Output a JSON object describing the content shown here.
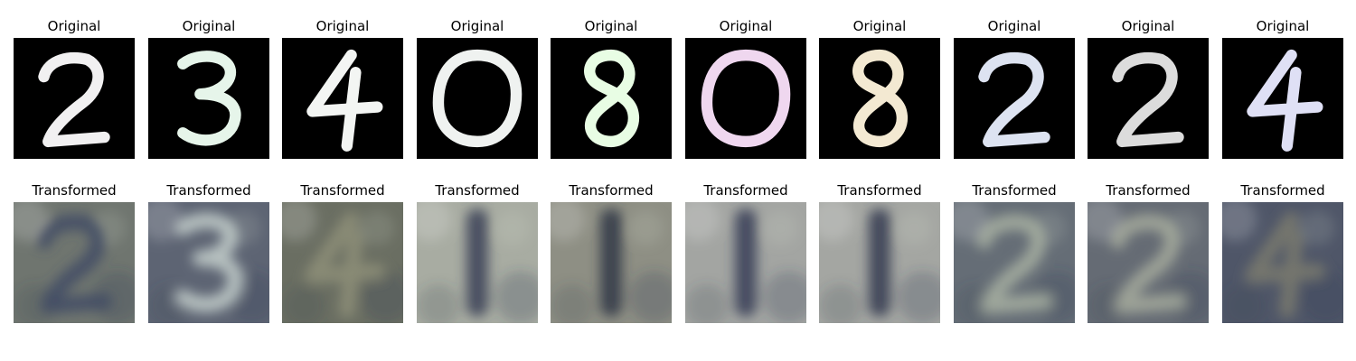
{
  "rows": [
    {
      "kind": "original",
      "items": [
        {
          "title": "Original",
          "digit": "2",
          "color": "#f1f0f1"
        },
        {
          "title": "Original",
          "digit": "3",
          "color": "#e6f5ea"
        },
        {
          "title": "Original",
          "digit": "4",
          "color": "#f3f5f3"
        },
        {
          "title": "Original",
          "digit": "0",
          "color": "#eff2f0"
        },
        {
          "title": "Original",
          "digit": "8",
          "color": "#e8fde4"
        },
        {
          "title": "Original",
          "digit": "0",
          "color": "#efd7ef"
        },
        {
          "title": "Original",
          "digit": "8",
          "color": "#f3e9d2"
        },
        {
          "title": "Original",
          "digit": "2",
          "color": "#dde3f1"
        },
        {
          "title": "Original",
          "digit": "2",
          "color": "#dcdcdc"
        },
        {
          "title": "Original",
          "digit": "4",
          "color": "#dfe0f5"
        }
      ]
    },
    {
      "kind": "transformed",
      "items": [
        {
          "title": "Transformed",
          "digit": "2",
          "bg": "#6f756f",
          "fg": "#3f4a64"
        },
        {
          "title": "Transformed",
          "digit": "3",
          "bg": "#5d6473",
          "fg": "#c6d0cc"
        },
        {
          "title": "Transformed",
          "digit": "4",
          "bg": "#6a6e62",
          "fg": "#8e8f78"
        },
        {
          "title": "Transformed",
          "digit": "1",
          "bg": "#a8aca2",
          "fg": "#3a4156"
        },
        {
          "title": "Transformed",
          "digit": "1",
          "bg": "#8e8f84",
          "fg": "#303646"
        },
        {
          "title": "Transformed",
          "digit": "1",
          "bg": "#a3a5a2",
          "fg": "#363c55"
        },
        {
          "title": "Transformed",
          "digit": "1",
          "bg": "#a4a6a2",
          "fg": "#343a50"
        },
        {
          "title": "Transformed",
          "digit": "2",
          "bg": "#656d76",
          "fg": "#a9b2a2"
        },
        {
          "title": "Transformed",
          "digit": "2",
          "bg": "#656b74",
          "fg": "#a7ad9d"
        },
        {
          "title": "Transformed",
          "digit": "4",
          "bg": "#4f5668",
          "fg": "#7b7b6e"
        }
      ]
    }
  ]
}
